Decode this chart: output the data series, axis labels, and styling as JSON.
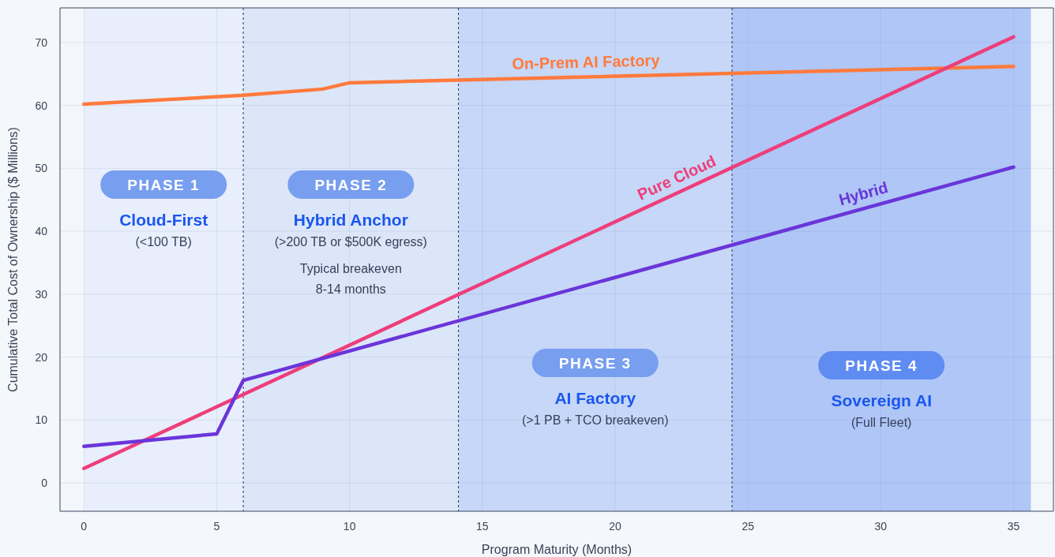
{
  "chart_data": {
    "type": "line",
    "xlabel": "Program Maturity (Months)",
    "ylabel": "Cumulative Total Cost of Ownership ($ Millions)",
    "xlim": [
      -0.9,
      36.5
    ],
    "ylim": [
      -4.5,
      75.5
    ],
    "xticks": [
      0,
      5,
      10,
      15,
      20,
      25,
      30,
      35
    ],
    "yticks": [
      0,
      10,
      20,
      30,
      40,
      50,
      60,
      70
    ],
    "grid": true,
    "legend": false,
    "line_style": "solid",
    "marker": "none",
    "series": [
      {
        "name": "On-Prem AI Factory",
        "color": "#ff7a3d",
        "x": [
          0,
          6,
          9,
          10,
          35
        ],
        "values": [
          60.2,
          61.6,
          62.6,
          63.6,
          66.2
        ]
      },
      {
        "name": "Pure Cloud",
        "color": "#ee3e7b",
        "x": [
          0,
          35
        ],
        "values": [
          2.3,
          70.9
        ]
      },
      {
        "name": "Hybrid",
        "color": "#6a35d9",
        "x": [
          0,
          5,
          6,
          35
        ],
        "values": [
          5.8,
          7.8,
          16.3,
          50.2
        ]
      }
    ],
    "bands": [
      {
        "axis": "x",
        "from": 0,
        "to": 6,
        "label": "PHASE 1",
        "color": "#e8eefb"
      },
      {
        "axis": "x",
        "from": 6,
        "to": 14.1,
        "label": "PHASE 2",
        "color": "#dce6f9"
      },
      {
        "axis": "x",
        "from": 14.1,
        "to": 24.4,
        "label": "PHASE 3",
        "color": "#c6d7f7"
      },
      {
        "axis": "x",
        "from": 24.4,
        "to": 35.65,
        "label": "PHASE 4",
        "color": "#afc6f6"
      }
    ],
    "ref_lines": [
      {
        "axis": "x",
        "value": 6,
        "line_style": "dashed",
        "color": "#2a3550"
      },
      {
        "axis": "x",
        "value": 14.1,
        "line_style": "dashed",
        "color": "#2a3550"
      },
      {
        "axis": "x",
        "value": 24.4,
        "line_style": "dashed",
        "color": "#2a3550"
      }
    ],
    "annotations": [
      "Cloud-First",
      "(<100 TB)",
      "Hybrid Anchor",
      "(>200 TB or $500K egress)",
      "Typical breakeven",
      "8-14 months",
      "AI Factory",
      "(>1 PB + TCO breakeven)",
      "Sovereign AI",
      "(Full Fleet)"
    ]
  }
}
